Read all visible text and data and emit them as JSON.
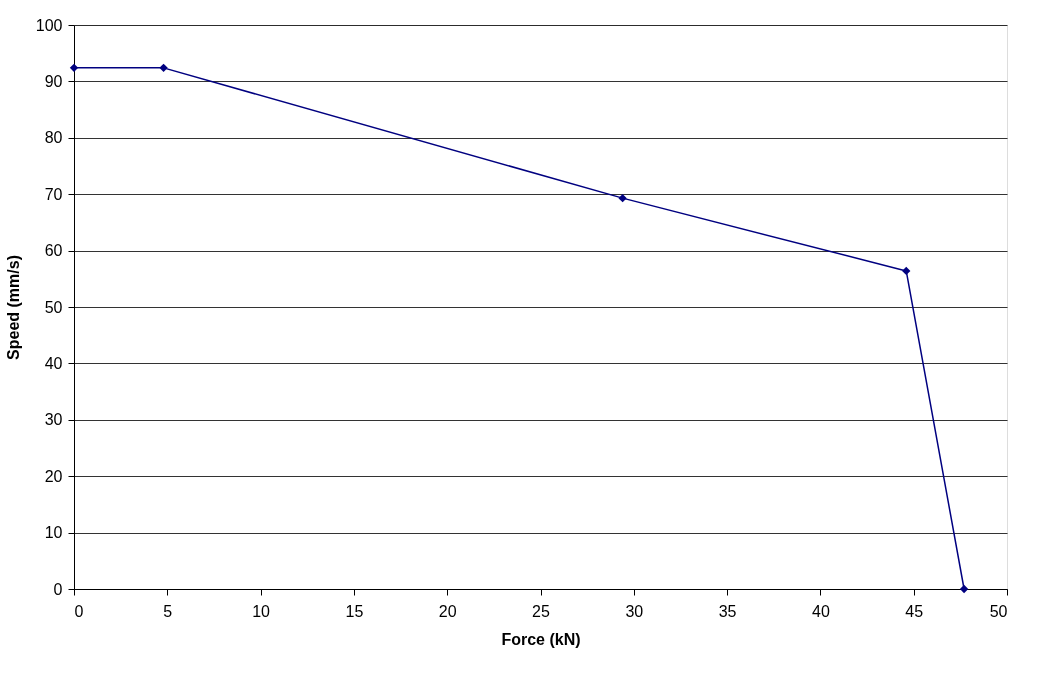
{
  "chart_data": {
    "type": "line",
    "xlabel": "Force (kN)",
    "ylabel": "Speed (mm/s)",
    "x": [
      0,
      4.8,
      29.4,
      44.6,
      47.7
    ],
    "series": [
      {
        "color": "#000080",
        "values": [
          92.4,
          92.4,
          69.3,
          56.4,
          0
        ]
      }
    ],
    "xlim": [
      0,
      50
    ],
    "xticks": [
      0,
      5,
      10,
      15,
      20,
      25,
      30,
      35,
      40,
      45,
      50
    ],
    "ylim": [
      0,
      100
    ],
    "yticks": [
      0,
      10,
      20,
      30,
      40,
      50,
      60,
      70,
      80,
      90,
      100
    ],
    "grid": "y",
    "marker": "diamond",
    "line_style": "solid",
    "legend": false
  }
}
